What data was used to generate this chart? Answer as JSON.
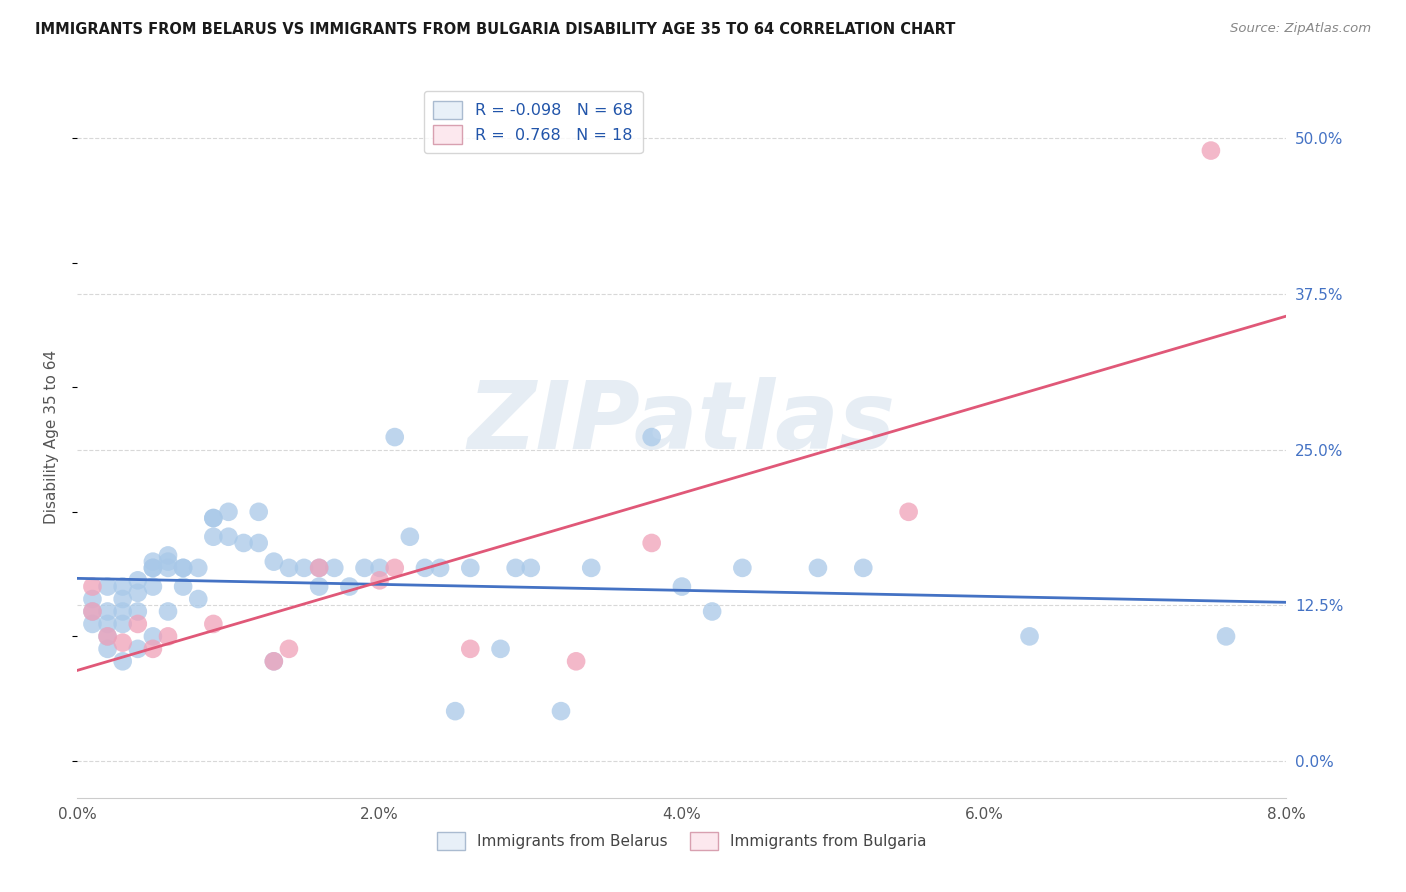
{
  "title": "IMMIGRANTS FROM BELARUS VS IMMIGRANTS FROM BULGARIA DISABILITY AGE 35 TO 64 CORRELATION CHART",
  "source": "Source: ZipAtlas.com",
  "xlabel_ticks": [
    "0.0%",
    "2.0%",
    "4.0%",
    "6.0%",
    "8.0%"
  ],
  "xlabel_values": [
    0.0,
    0.02,
    0.04,
    0.06,
    0.08
  ],
  "ylabel_label": "Disability Age 35 to 64",
  "ylabel_ticks": [
    "50.0%",
    "37.5%",
    "25.0%",
    "12.5%",
    "0.0%"
  ],
  "ylabel_values": [
    0.5,
    0.375,
    0.25,
    0.125,
    0.0
  ],
  "xlim": [
    0.0,
    0.08
  ],
  "ylim": [
    -0.03,
    0.55
  ],
  "legend_R1": "-0.098",
  "legend_N1": "68",
  "legend_R2": "0.768",
  "legend_N2": "18",
  "watermark_text": "ZIPatlas",
  "belarus_color": "#a8c8e8",
  "bulgaria_color": "#f0a0b8",
  "belarus_line_color": "#4472c4",
  "bulgaria_line_color": "#e05878",
  "belarus_x": [
    0.001,
    0.001,
    0.001,
    0.002,
    0.002,
    0.002,
    0.002,
    0.002,
    0.003,
    0.003,
    0.003,
    0.003,
    0.003,
    0.004,
    0.004,
    0.004,
    0.004,
    0.005,
    0.005,
    0.005,
    0.005,
    0.005,
    0.006,
    0.006,
    0.006,
    0.006,
    0.007,
    0.007,
    0.007,
    0.008,
    0.008,
    0.009,
    0.009,
    0.009,
    0.01,
    0.01,
    0.011,
    0.012,
    0.012,
    0.013,
    0.013,
    0.014,
    0.015,
    0.016,
    0.016,
    0.017,
    0.018,
    0.019,
    0.02,
    0.021,
    0.022,
    0.023,
    0.024,
    0.025,
    0.026,
    0.028,
    0.029,
    0.03,
    0.032,
    0.034,
    0.038,
    0.04,
    0.042,
    0.044,
    0.049,
    0.052,
    0.063,
    0.076
  ],
  "belarus_y": [
    0.13,
    0.12,
    0.11,
    0.14,
    0.12,
    0.11,
    0.1,
    0.09,
    0.14,
    0.13,
    0.12,
    0.11,
    0.08,
    0.145,
    0.135,
    0.12,
    0.09,
    0.16,
    0.155,
    0.155,
    0.14,
    0.1,
    0.165,
    0.16,
    0.155,
    0.12,
    0.155,
    0.155,
    0.14,
    0.155,
    0.13,
    0.195,
    0.195,
    0.18,
    0.2,
    0.18,
    0.175,
    0.2,
    0.175,
    0.16,
    0.08,
    0.155,
    0.155,
    0.155,
    0.14,
    0.155,
    0.14,
    0.155,
    0.155,
    0.26,
    0.18,
    0.155,
    0.155,
    0.04,
    0.155,
    0.09,
    0.155,
    0.155,
    0.04,
    0.155,
    0.26,
    0.14,
    0.12,
    0.155,
    0.155,
    0.155,
    0.1,
    0.1
  ],
  "bulgaria_x": [
    0.001,
    0.001,
    0.002,
    0.003,
    0.004,
    0.005,
    0.006,
    0.009,
    0.013,
    0.014,
    0.016,
    0.02,
    0.021,
    0.026,
    0.033,
    0.038,
    0.055,
    0.075
  ],
  "bulgaria_y": [
    0.14,
    0.12,
    0.1,
    0.095,
    0.11,
    0.09,
    0.1,
    0.11,
    0.08,
    0.09,
    0.155,
    0.145,
    0.155,
    0.09,
    0.08,
    0.175,
    0.2,
    0.49
  ],
  "background_color": "#ffffff",
  "grid_color": "#d8d8d8",
  "legend_box_color": "#e8f0f8",
  "legend_box2_color": "#fce8ee"
}
